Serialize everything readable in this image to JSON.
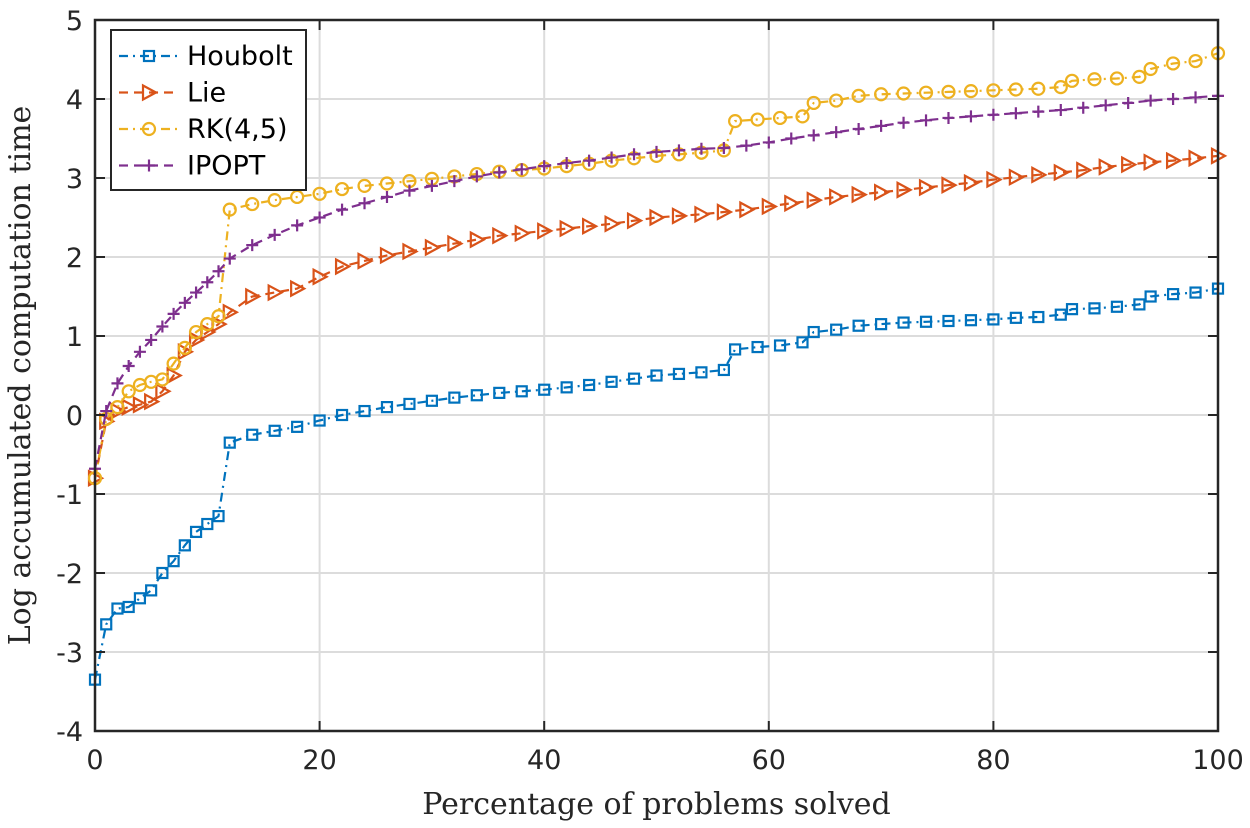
{
  "chart_data": {
    "type": "line",
    "xlabel": "Percentage of problems solved",
    "ylabel": "Log accumulated computation time",
    "xlim": [
      0,
      100
    ],
    "ylim": [
      -4,
      5
    ],
    "xticks": [
      0,
      20,
      40,
      60,
      80,
      100
    ],
    "yticks": [
      -4,
      -3,
      -2,
      -1,
      0,
      1,
      2,
      3,
      4,
      5
    ],
    "xtick_labels": [
      "0",
      "20",
      "40",
      "60",
      "80",
      "100"
    ],
    "ytick_labels": [
      "-4",
      "-3",
      "-2",
      "-1",
      "0",
      "1",
      "2",
      "3",
      "4",
      "5"
    ],
    "grid": true,
    "legend_position": "top-left",
    "series": [
      {
        "name": "Houbolt",
        "color": "#0072BD",
        "marker": "square",
        "linestyle": "dash-dot",
        "x": [
          0,
          1,
          2,
          3,
          4,
          5,
          6,
          7,
          8,
          9,
          10,
          11,
          12,
          14,
          16,
          18,
          20,
          22,
          24,
          26,
          28,
          30,
          32,
          34,
          36,
          38,
          40,
          42,
          44,
          46,
          48,
          50,
          52,
          54,
          56,
          57,
          59,
          61,
          63,
          64,
          66,
          68,
          70,
          72,
          74,
          76,
          78,
          80,
          82,
          84,
          86,
          87,
          89,
          91,
          93,
          94,
          96,
          98,
          100
        ],
        "values": [
          -3.35,
          -2.65,
          -2.45,
          -2.43,
          -2.32,
          -2.22,
          -2.0,
          -1.85,
          -1.65,
          -1.48,
          -1.38,
          -1.28,
          -0.35,
          -0.25,
          -0.2,
          -0.15,
          -0.07,
          0.0,
          0.05,
          0.1,
          0.14,
          0.18,
          0.22,
          0.25,
          0.28,
          0.3,
          0.32,
          0.35,
          0.38,
          0.42,
          0.46,
          0.5,
          0.52,
          0.54,
          0.57,
          0.83,
          0.86,
          0.88,
          0.92,
          1.05,
          1.08,
          1.13,
          1.15,
          1.17,
          1.18,
          1.19,
          1.2,
          1.21,
          1.23,
          1.24,
          1.27,
          1.34,
          1.35,
          1.37,
          1.4,
          1.5,
          1.53,
          1.55,
          1.6
        ]
      },
      {
        "name": "Lie",
        "color": "#D95319",
        "marker": "triangle-right",
        "linestyle": "dashed",
        "x": [
          0,
          1,
          2,
          3,
          4,
          5,
          6,
          7,
          8,
          9,
          10,
          11,
          12,
          14,
          16,
          18,
          20,
          22,
          24,
          26,
          28,
          30,
          32,
          34,
          36,
          38,
          40,
          42,
          44,
          46,
          48,
          50,
          52,
          54,
          56,
          58,
          60,
          62,
          64,
          66,
          68,
          70,
          72,
          74,
          76,
          78,
          80,
          82,
          84,
          86,
          88,
          90,
          92,
          94,
          96,
          98,
          100
        ],
        "values": [
          -0.8,
          -0.08,
          0.05,
          0.1,
          0.13,
          0.17,
          0.3,
          0.5,
          0.8,
          0.95,
          1.05,
          1.15,
          1.3,
          1.5,
          1.55,
          1.6,
          1.75,
          1.88,
          1.95,
          2.02,
          2.07,
          2.12,
          2.17,
          2.22,
          2.27,
          2.3,
          2.33,
          2.36,
          2.39,
          2.42,
          2.46,
          2.5,
          2.52,
          2.54,
          2.57,
          2.6,
          2.64,
          2.68,
          2.72,
          2.76,
          2.79,
          2.82,
          2.85,
          2.88,
          2.91,
          2.94,
          2.98,
          3.01,
          3.04,
          3.07,
          3.1,
          3.14,
          3.17,
          3.2,
          3.22,
          3.25,
          3.28
        ]
      },
      {
        "name": "RK(4,5)",
        "color": "#EDB120",
        "marker": "circle",
        "linestyle": "dash-dot",
        "x": [
          0,
          1,
          2,
          3,
          4,
          5,
          6,
          7,
          8,
          9,
          10,
          11,
          12,
          14,
          16,
          18,
          20,
          22,
          24,
          26,
          28,
          30,
          32,
          34,
          36,
          38,
          40,
          42,
          44,
          46,
          48,
          50,
          52,
          54,
          56,
          57,
          59,
          61,
          63,
          64,
          66,
          68,
          70,
          72,
          74,
          76,
          78,
          80,
          82,
          84,
          86,
          87,
          89,
          91,
          93,
          94,
          96,
          98,
          100
        ],
        "values": [
          -0.8,
          -0.05,
          0.1,
          0.3,
          0.38,
          0.42,
          0.45,
          0.65,
          0.85,
          1.05,
          1.15,
          1.25,
          2.6,
          2.67,
          2.72,
          2.76,
          2.8,
          2.86,
          2.9,
          2.93,
          2.96,
          2.99,
          3.02,
          3.05,
          3.08,
          3.1,
          3.12,
          3.15,
          3.18,
          3.22,
          3.25,
          3.28,
          3.3,
          3.32,
          3.35,
          3.72,
          3.74,
          3.76,
          3.78,
          3.95,
          3.98,
          4.04,
          4.06,
          4.07,
          4.08,
          4.09,
          4.1,
          4.11,
          4.12,
          4.13,
          4.15,
          4.23,
          4.25,
          4.26,
          4.28,
          4.38,
          4.45,
          4.48,
          4.58
        ]
      },
      {
        "name": "IPOPT",
        "color": "#7E2F8E",
        "marker": "plus",
        "linestyle": "dashed",
        "x": [
          0,
          1,
          2,
          3,
          4,
          5,
          6,
          7,
          8,
          9,
          10,
          11,
          12,
          14,
          16,
          18,
          20,
          22,
          24,
          26,
          28,
          30,
          32,
          34,
          36,
          38,
          40,
          42,
          44,
          46,
          48,
          50,
          52,
          54,
          56,
          58,
          60,
          62,
          64,
          66,
          68,
          70,
          72,
          74,
          76,
          78,
          80,
          82,
          84,
          86,
          88,
          90,
          92,
          94,
          96,
          98,
          100
        ],
        "values": [
          -0.68,
          0.05,
          0.4,
          0.62,
          0.8,
          0.95,
          1.12,
          1.28,
          1.42,
          1.55,
          1.68,
          1.82,
          1.98,
          2.15,
          2.28,
          2.4,
          2.5,
          2.6,
          2.68,
          2.76,
          2.84,
          2.9,
          2.96,
          3.02,
          3.07,
          3.11,
          3.15,
          3.19,
          3.22,
          3.26,
          3.3,
          3.33,
          3.35,
          3.37,
          3.38,
          3.41,
          3.45,
          3.5,
          3.54,
          3.58,
          3.62,
          3.66,
          3.7,
          3.73,
          3.76,
          3.78,
          3.8,
          3.82,
          3.84,
          3.86,
          3.89,
          3.92,
          3.95,
          3.98,
          4.0,
          4.02,
          4.04
        ]
      }
    ]
  }
}
